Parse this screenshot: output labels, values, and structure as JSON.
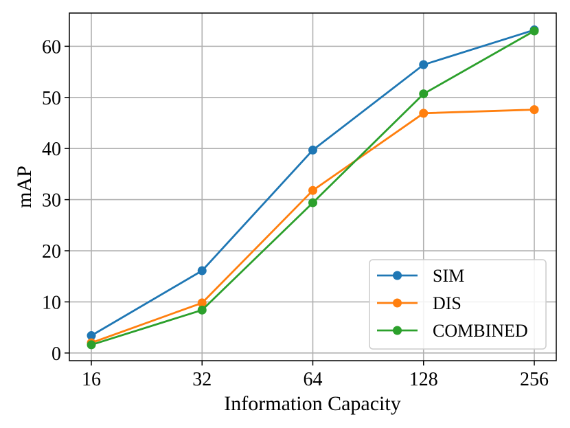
{
  "chart_data": {
    "type": "line",
    "title": "",
    "xlabel": "Information Capacity",
    "ylabel": "mAP",
    "categories": [
      "16",
      "32",
      "64",
      "128",
      "256"
    ],
    "x_scale": "log2",
    "ylim": [
      -1.5,
      66.5
    ],
    "yticks": [
      0,
      10,
      20,
      30,
      40,
      50,
      60
    ],
    "grid": true,
    "legend_position": "lower-right",
    "series": [
      {
        "name": "SIM",
        "color": "#1f77b4",
        "values": [
          3.4,
          16.1,
          39.7,
          56.4,
          63.2
        ]
      },
      {
        "name": "DIS",
        "color": "#ff7f0e",
        "values": [
          2.0,
          9.8,
          31.8,
          46.9,
          47.6
        ]
      },
      {
        "name": "COMBINED",
        "color": "#2ca02c",
        "values": [
          1.6,
          8.4,
          29.4,
          50.7,
          63.0
        ]
      }
    ]
  }
}
